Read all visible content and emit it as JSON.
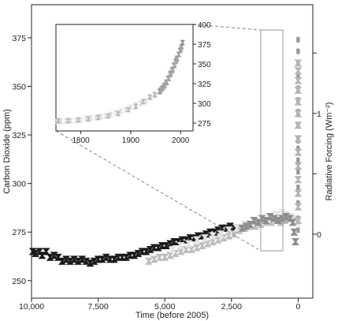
{
  "chart_data": [
    {
      "type": "scatter",
      "role": "main",
      "xlabel": "Time (before 2005)",
      "ylabel": "Carbon Dioxide (ppm)",
      "y2label": "Radiative Forcing (Wm⁻²)",
      "x_reversed": true,
      "xlim": [
        10000,
        -550
      ],
      "ylim": [
        241,
        392
      ],
      "y2lim": [
        -0.53,
        1.9
      ],
      "x_ticks": [
        10000,
        7500,
        5000,
        2500,
        0
      ],
      "x_tick_labels": [
        "10,000",
        "7,500",
        "5,000",
        "2,500",
        "0"
      ],
      "y_ticks": [
        250,
        275,
        300,
        325,
        350,
        375
      ],
      "y2_ticks": [
        0,
        0.5,
        1,
        1.5
      ],
      "y2_tick_labels": [
        "0",
        "",
        "1",
        ""
      ],
      "grid": false,
      "series": [
        {
          "color": "#1a1a1a",
          "marker": "bowtie",
          "points": [
            [
              9950,
              265
            ],
            [
              9850,
              264
            ],
            [
              9700,
              265
            ],
            [
              9600,
              263
            ],
            [
              9450,
              265
            ],
            [
              9300,
              262
            ],
            [
              9150,
              263
            ],
            [
              9000,
              262
            ],
            [
              8850,
              260
            ],
            [
              8700,
              261
            ],
            [
              8550,
              260
            ],
            [
              8400,
              261
            ],
            [
              8250,
              260
            ],
            [
              8100,
              261
            ],
            [
              7950,
              260
            ],
            [
              7800,
              259
            ],
            [
              7650,
              260
            ],
            [
              7500,
              261
            ],
            [
              7350,
              261
            ],
            [
              7200,
              262
            ],
            [
              7050,
              261
            ],
            [
              6900,
              261
            ],
            [
              6750,
              262
            ],
            [
              6600,
              262
            ],
            [
              6450,
              262
            ],
            [
              6300,
              263
            ],
            [
              6150,
              263
            ],
            [
              6000,
              264
            ],
            [
              5850,
              265
            ],
            [
              5700,
              265
            ],
            [
              5550,
              266
            ],
            [
              5400,
              267
            ],
            [
              5250,
              267
            ],
            [
              5100,
              268
            ],
            [
              4950,
              268
            ],
            [
              4800,
              269
            ],
            [
              4650,
              270
            ],
            [
              4500,
              270
            ],
            [
              4350,
              271
            ],
            [
              4200,
              271
            ],
            [
              4050,
              272
            ],
            [
              3900,
              272
            ],
            [
              3750,
              273
            ],
            [
              3600,
              273
            ],
            [
              3450,
              274
            ],
            [
              3300,
              275
            ],
            [
              3150,
              275
            ],
            [
              3000,
              276
            ],
            [
              2850,
              277
            ],
            [
              2700,
              277
            ],
            [
              2550,
              278
            ],
            [
              2400,
              277
            ],
            [
              2250,
              276
            ]
          ]
        },
        {
          "color": "#bdbdbd",
          "marker": "bowtie",
          "points": [
            [
              5600,
              260
            ],
            [
              5400,
              261
            ],
            [
              5200,
              262
            ],
            [
              5000,
              262
            ],
            [
              4800,
              263
            ],
            [
              4600,
              264
            ],
            [
              4400,
              265
            ],
            [
              4200,
              266
            ],
            [
              4000,
              266
            ],
            [
              3800,
              267
            ],
            [
              3600,
              268
            ],
            [
              3400,
              269
            ],
            [
              3200,
              270
            ],
            [
              3000,
              271
            ],
            [
              2800,
              272
            ],
            [
              2600,
              273
            ],
            [
              2400,
              274
            ],
            [
              2200,
              276
            ],
            [
              2000,
              277
            ],
            [
              1800,
              278
            ],
            [
              1600,
              278
            ],
            [
              1400,
              279
            ],
            [
              1200,
              280
            ],
            [
              1000,
              280
            ],
            [
              800,
              281
            ],
            [
              650,
              280
            ],
            [
              500,
              281
            ],
            [
              350,
              282
            ]
          ]
        },
        {
          "color": "#e3e3e3",
          "marker": "bowtie",
          "points": [
            [
              4700,
              266
            ],
            [
              4400,
              268
            ],
            [
              4100,
              269
            ],
            [
              3800,
              271
            ],
            [
              3500,
              272
            ],
            [
              3200,
              273
            ],
            [
              2900,
              274
            ],
            [
              2600,
              276
            ],
            [
              2300,
              277
            ],
            [
              2000,
              279
            ],
            [
              1700,
              281
            ],
            [
              1400,
              282
            ],
            [
              1100,
              283
            ],
            [
              800,
              284
            ],
            [
              600,
              285
            ],
            [
              450,
              284
            ],
            [
              300,
              283
            ],
            [
              150,
              282
            ],
            [
              50,
              280
            ]
          ]
        },
        {
          "color": "#8c8c8c",
          "marker": "bowtie",
          "points": [
            [
              2100,
              277
            ],
            [
              1950,
              278
            ],
            [
              1800,
              279
            ],
            [
              1650,
              281
            ],
            [
              1500,
              280
            ],
            [
              1350,
              282
            ],
            [
              1200,
              281
            ],
            [
              1050,
              283
            ],
            [
              900,
              282
            ],
            [
              750,
              281
            ],
            [
              600,
              282
            ],
            [
              450,
              283
            ],
            [
              300,
              282
            ],
            [
              200,
              280
            ],
            [
              150,
              275
            ],
            [
              100,
              270
            ]
          ]
        },
        {
          "color": "#9a9a9a",
          "marker": "bar",
          "points": [
            [
              0,
              276
            ],
            [
              0,
              282
            ],
            [
              0,
              290
            ],
            [
              0,
              298
            ],
            [
              0,
              306
            ],
            [
              0,
              312
            ],
            [
              0,
              318
            ],
            [
              0,
              322
            ],
            [
              0,
              330
            ],
            [
              0,
              337
            ],
            [
              0,
              343
            ],
            [
              0,
              349
            ],
            [
              0,
              356
            ],
            [
              0,
              362
            ],
            [
              0,
              368
            ],
            [
              0,
              374
            ]
          ]
        },
        {
          "color": "#b5b5b5",
          "marker": "bowtie",
          "points": [
            [
              0,
              281
            ],
            [
              0,
              288
            ],
            [
              0,
              295
            ],
            [
              0,
              302
            ],
            [
              0,
              309
            ],
            [
              0,
              316
            ],
            [
              0,
              323
            ],
            [
              0,
              330
            ],
            [
              0,
              336
            ],
            [
              0,
              342
            ],
            [
              0,
              348
            ],
            [
              0,
              353
            ],
            [
              0,
              358
            ],
            [
              0,
              362
            ]
          ]
        }
      ]
    },
    {
      "type": "scatter",
      "role": "inset",
      "title": "",
      "xlim": [
        1750,
        2025
      ],
      "ylim": [
        265,
        400
      ],
      "x_ticks": [
        1800,
        1900,
        2000
      ],
      "y_ticks": [
        275,
        300,
        325,
        350,
        375,
        400
      ],
      "grid": false,
      "series": [
        {
          "color": "#e0e0e0",
          "points": [
            [
              1752,
              277
            ],
            [
              1760,
              277
            ],
            [
              1770,
              277.5
            ],
            [
              1780,
              278
            ],
            [
              1790,
              278
            ],
            [
              1800,
              279
            ],
            [
              1810,
              281
            ],
            [
              1820,
              281.5
            ],
            [
              1830,
              282
            ],
            [
              1840,
              283
            ],
            [
              1850,
              284
            ],
            [
              1860,
              286
            ],
            [
              1870,
              288
            ],
            [
              1880,
              290
            ],
            [
              1890,
              292
            ],
            [
              1900,
              295
            ],
            [
              1910,
              298
            ],
            [
              1920,
              300
            ],
            [
              1930,
              303
            ],
            [
              1940,
              307
            ],
            [
              1950,
              310
            ],
            [
              1960,
              316
            ]
          ]
        },
        {
          "color": "#b8b8b8",
          "points": [
            [
              1755,
              278
            ],
            [
              1775,
              278
            ],
            [
              1795,
              279
            ],
            [
              1815,
              280
            ],
            [
              1835,
              282
            ],
            [
              1855,
              284
            ],
            [
              1875,
              287
            ],
            [
              1895,
              292
            ],
            [
              1910,
              296
            ],
            [
              1925,
              302
            ],
            [
              1938,
              308
            ],
            [
              1948,
              311
            ]
          ]
        },
        {
          "color": "#8f8f8f",
          "points": [
            [
              1958,
              315
            ],
            [
              1963,
              319
            ],
            [
              1968,
              323
            ],
            [
              1972,
              327
            ],
            [
              1976,
              332
            ],
            [
              1980,
              338
            ],
            [
              1984,
              343
            ],
            [
              1987,
              348
            ],
            [
              1990,
              353
            ],
            [
              1993,
              357
            ],
            [
              1996,
              362
            ],
            [
              1999,
              367
            ],
            [
              2002,
              372
            ],
            [
              2004,
              377
            ]
          ]
        },
        {
          "color": "#a8a8a8",
          "points": [
            [
              1960,
              317
            ],
            [
              1966,
              321
            ],
            [
              1971,
              326
            ],
            [
              1975,
              331
            ],
            [
              1979,
              336
            ],
            [
              1983,
              341
            ],
            [
              1988,
              349
            ],
            [
              1992,
              355
            ],
            [
              1997,
              362
            ],
            [
              2001,
              369
            ]
          ]
        }
      ]
    }
  ]
}
